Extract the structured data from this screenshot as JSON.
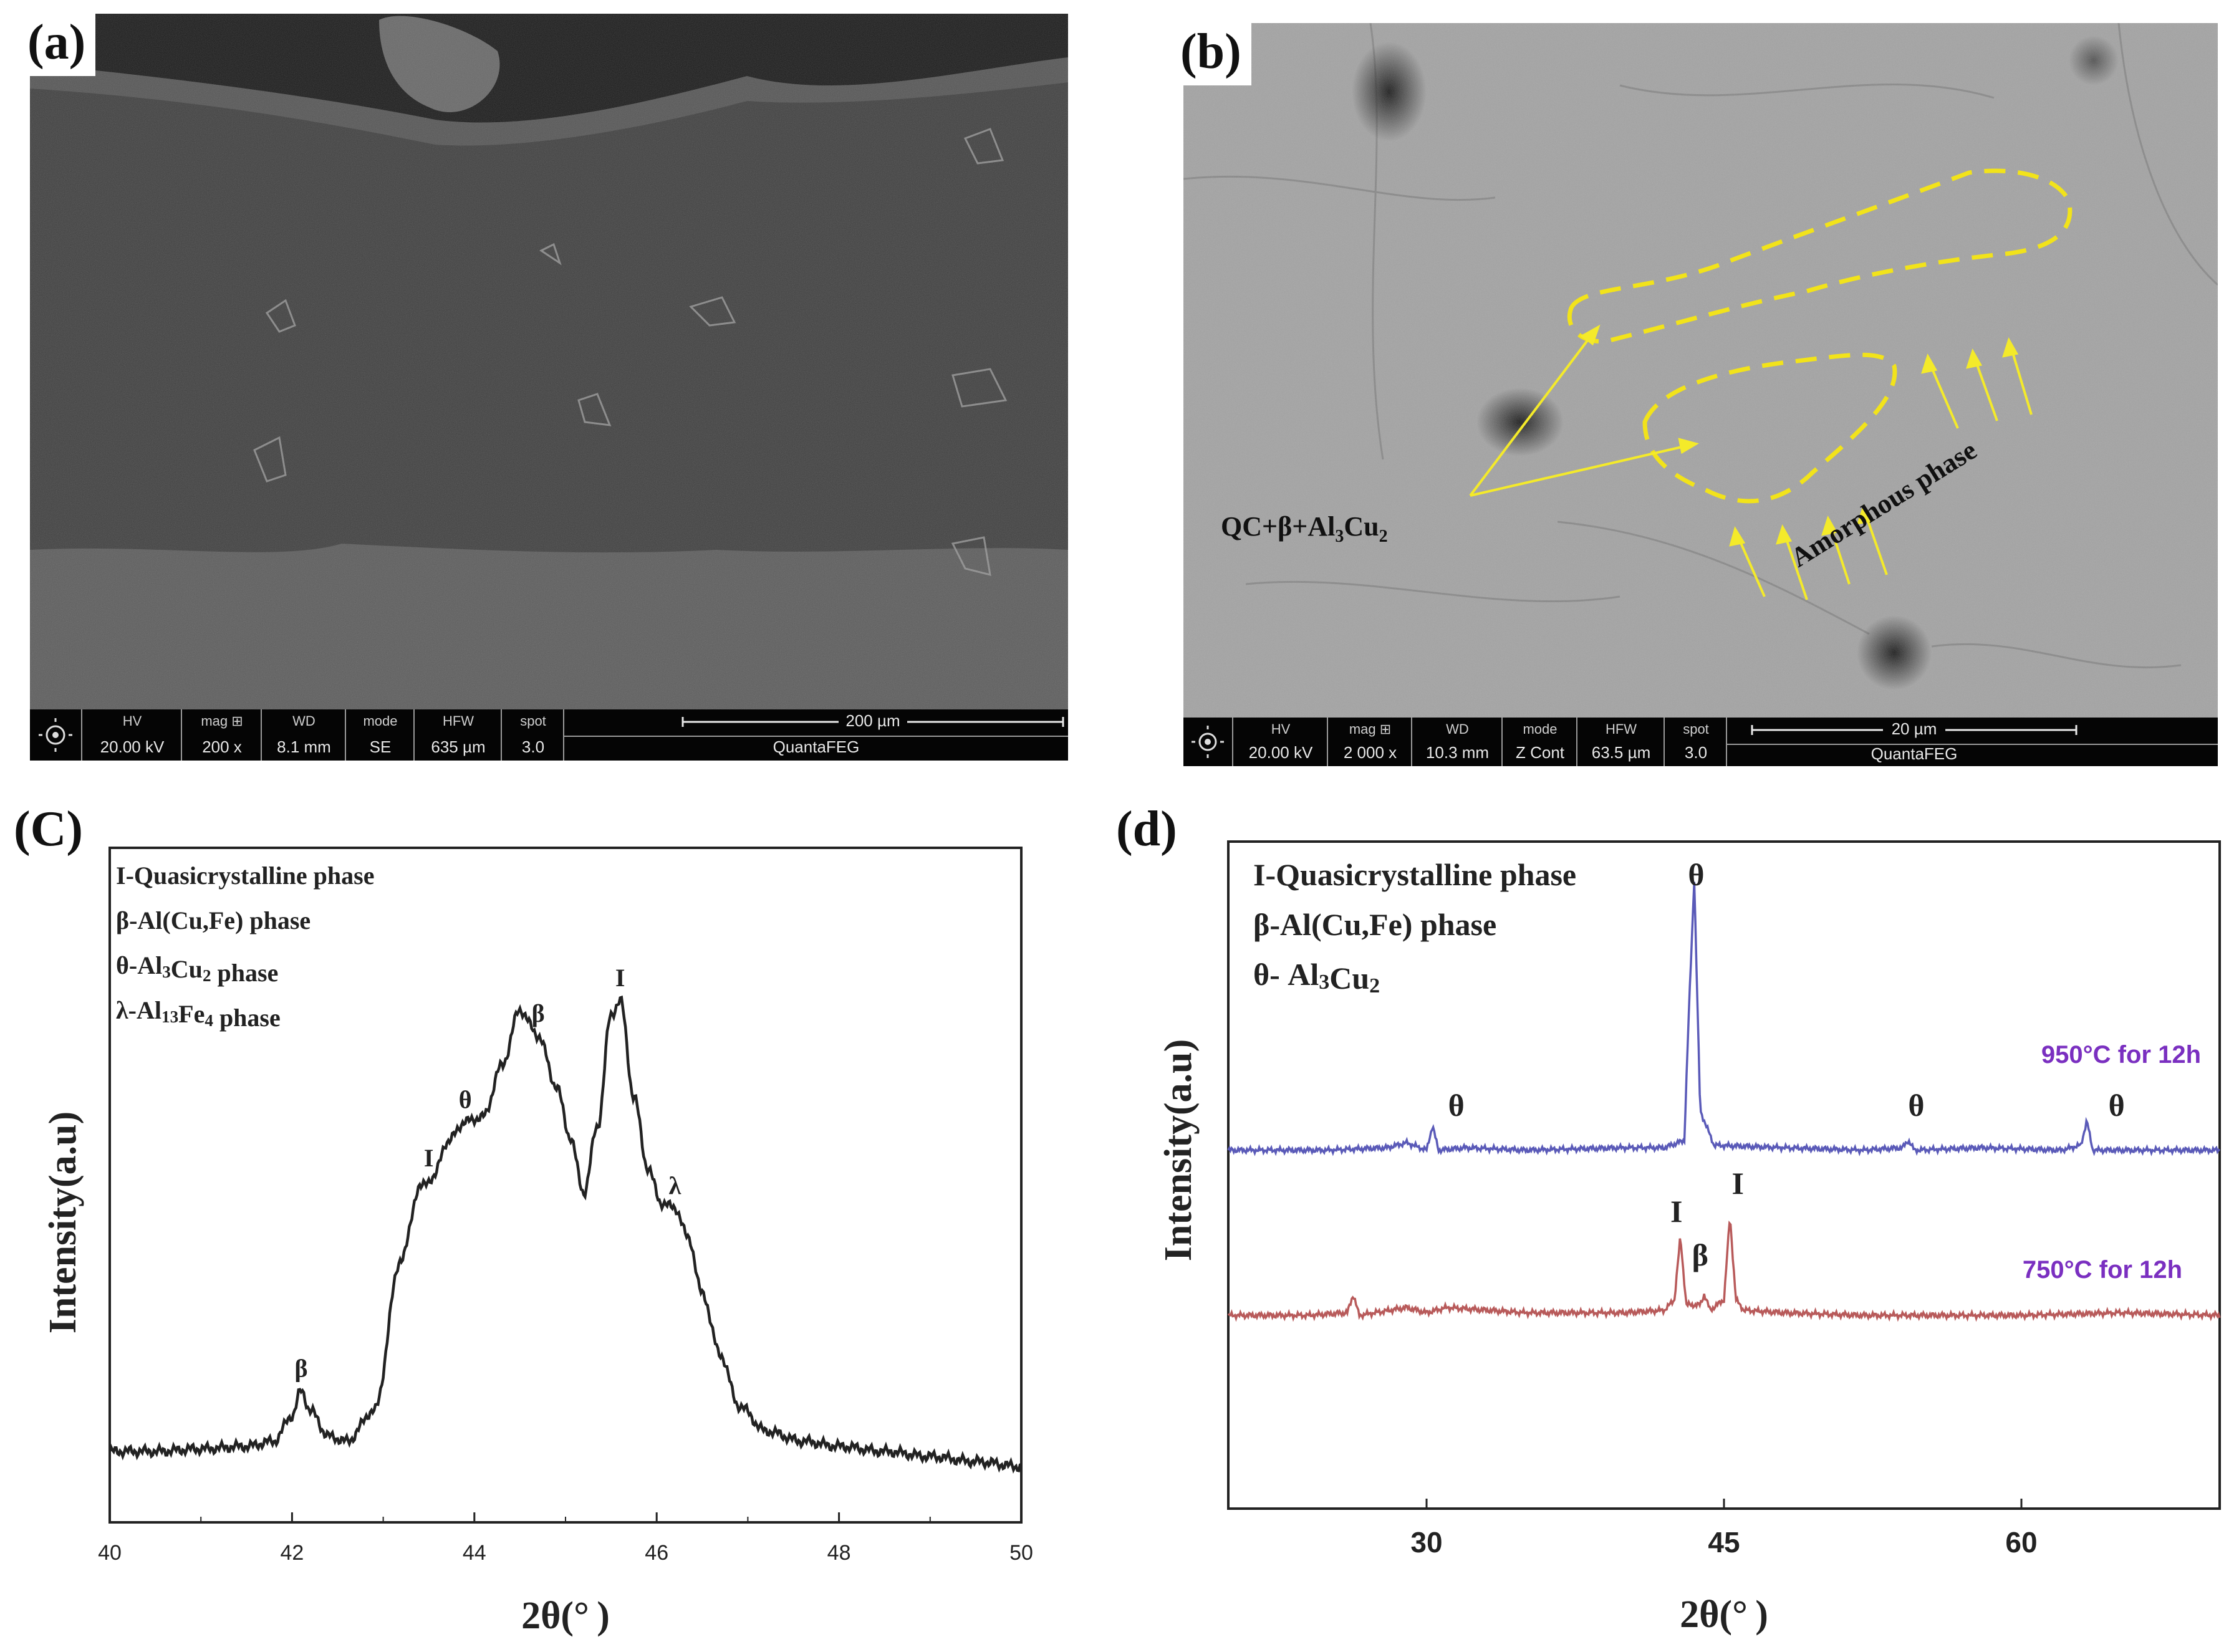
{
  "panel_a": {
    "label": "(a)",
    "databar": {
      "headers": [
        "HV",
        "mag ⊞",
        "WD",
        "mode",
        "HFW",
        "spot"
      ],
      "values": [
        "20.00 kV",
        "200 x",
        "8.1 mm",
        "SE",
        "635 µm",
        "3.0"
      ],
      "scale_label": "200 µm",
      "instrument": "QuantaFEG"
    }
  },
  "panel_b": {
    "label": "(b)",
    "annotation_qc": "QC+β+Al",
    "annotation_qc_sub1": "3",
    "annotation_qc_mid": "Cu",
    "annotation_qc_sub2": "2",
    "annotation_amorphous": "Amorphous phase",
    "region_color": "#f2e31a",
    "arrow_color": "#f4ea2a",
    "databar": {
      "headers": [
        "HV",
        "mag ⊞",
        "WD",
        "mode",
        "HFW",
        "spot"
      ],
      "values": [
        "20.00 kV",
        "2 000 x",
        "10.3 mm",
        "Z Cont",
        "63.5 µm",
        "3.0"
      ],
      "scale_label": "20 µm",
      "instrument": "QuantaFEG"
    }
  },
  "chart_data": [
    {
      "panel": "(C)",
      "type": "line",
      "xlabel": "2θ(° )",
      "ylabel": "Intensity(a.u)",
      "xlim": [
        40,
        50
      ],
      "xticks": [
        40,
        42,
        44,
        46,
        48,
        50
      ],
      "legend_lines": [
        "I-Quasicrystalline phase",
        "β-Al(Cu,Fe) phase",
        "θ-Al3Cu2 phase",
        "λ-Al13Fe4 phase"
      ],
      "series": [
        {
          "x": [
            40.0,
            40.5,
            41.0,
            41.5,
            41.8,
            42.0,
            42.1,
            42.2,
            42.4,
            42.6,
            42.9,
            43.2,
            43.4,
            43.55,
            43.7,
            43.9,
            44.1,
            44.3,
            44.5,
            44.7,
            44.9,
            45.05,
            45.2,
            45.35,
            45.5,
            45.6,
            45.75,
            45.9,
            46.05,
            46.2,
            46.35,
            46.5,
            46.7,
            46.9,
            47.2,
            47.6,
            48.0,
            48.5,
            49.0,
            49.5,
            50.0
          ],
          "y": [
            6,
            6,
            6.5,
            7,
            8,
            13,
            18,
            14,
            9,
            8,
            14,
            44,
            58,
            60,
            67,
            71,
            72,
            82,
            93,
            88,
            78,
            68,
            57,
            70,
            92,
            95,
            76,
            62,
            55,
            54,
            48,
            37,
            25,
            15,
            10,
            8,
            7,
            6,
            5,
            4,
            3
          ]
        }
      ],
      "peak_labels": [
        {
          "text": "β",
          "x": 42.1
        },
        {
          "text": "I",
          "x": 43.5
        },
        {
          "text": "θ",
          "x": 43.9
        },
        {
          "text": "β",
          "x": 44.7
        },
        {
          "text": "I",
          "x": 45.6
        },
        {
          "text": "λ",
          "x": 46.2
        }
      ]
    },
    {
      "panel": "(d)",
      "type": "line",
      "xlabel": "2θ(° )",
      "ylabel": "Intensity(a.u)",
      "xlim": [
        20,
        70
      ],
      "xticks": [
        30,
        45,
        60
      ],
      "legend_lines": [
        "I-Quasicrystalline phase",
        "β-Al(Cu,Fe) phase",
        "θ- Al3Cu2"
      ],
      "series": [
        {
          "name": "950°C for 12h",
          "color": "#5a5ab8",
          "label_color": "#7a2fc0",
          "x": [
            20,
            25,
            28,
            29,
            30,
            30.3,
            30.6,
            32,
            35,
            40,
            42,
            43,
            43.2,
            43.5,
            43.8,
            44.5,
            48,
            52,
            54,
            54.3,
            54.6,
            58,
            62,
            63,
            63.3,
            63.6,
            65,
            70
          ],
          "y": [
            0,
            0,
            0.5,
            1.5,
            0,
            5,
            0,
            0.5,
            0,
            0.5,
            0.5,
            2,
            25,
            55,
            8,
            1,
            0.5,
            0,
            0.5,
            2,
            0,
            0.5,
            0,
            1,
            6,
            0,
            0,
            0
          ]
        },
        {
          "name": "750°C for 12h",
          "color": "#b85a5a",
          "label_color": "#7a2fc0",
          "x": [
            20,
            24,
            26,
            26.3,
            26.6,
            29,
            30,
            31,
            35,
            40,
            42,
            42.5,
            42.8,
            43.1,
            43.8,
            44.0,
            44.3,
            45,
            45.3,
            45.6,
            46,
            48,
            52,
            60,
            65,
            70
          ],
          "y": [
            0,
            0,
            0.5,
            4,
            0,
            1.5,
            0.5,
            1.5,
            0.5,
            0.5,
            1,
            3,
            15,
            2,
            2,
            4,
            1,
            3,
            19,
            3,
            1,
            0.5,
            0,
            0,
            0.5,
            0
          ]
        }
      ],
      "peak_labels": [
        {
          "text": "θ",
          "x": 43.6,
          "series": 0
        },
        {
          "text": "θ",
          "x": 31.5,
          "series": 0
        },
        {
          "text": "θ",
          "x": 54.7,
          "series": 0
        },
        {
          "text": "θ",
          "x": 64.8,
          "series": 0
        },
        {
          "text": "I",
          "x": 42.6,
          "series": 1
        },
        {
          "text": "β",
          "x": 43.8,
          "series": 1
        },
        {
          "text": "I",
          "x": 45.7,
          "series": 1
        }
      ]
    }
  ]
}
